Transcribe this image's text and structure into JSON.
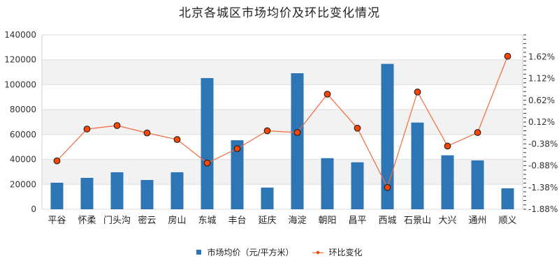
{
  "chart_data": {
    "type": "bar",
    "title": "北京各城区市场均价及环比变化情况",
    "categories": [
      "平谷",
      "怀柔",
      "门头沟",
      "密云",
      "房山",
      "东城",
      "丰台",
      "延庆",
      "海淀",
      "朝阳",
      "昌平",
      "西城",
      "石景山",
      "大兴",
      "通州",
      "顺义"
    ],
    "series": [
      {
        "name": "市场均价（元/平方米）",
        "type": "bar",
        "axis": "left",
        "color": "#2e75b6",
        "values": [
          21300,
          25200,
          29700,
          23500,
          29700,
          105300,
          55400,
          17400,
          109200,
          41000,
          37700,
          116700,
          69600,
          43300,
          39200,
          16800
        ]
      },
      {
        "name": "环比变化",
        "type": "line",
        "axis": "right",
        "color": "#f26a3a",
        "marker_color": "#ff4500",
        "unit": "%",
        "values": [
          -0.77,
          -0.04,
          0.04,
          -0.13,
          -0.28,
          -0.82,
          -0.49,
          -0.08,
          -0.12,
          0.76,
          -0.02,
          -1.38,
          0.81,
          -0.43,
          -0.12,
          1.63
        ]
      }
    ],
    "left_axis": {
      "ylim": [
        0,
        140000
      ],
      "ticks": [
        "0",
        "20000",
        "40000",
        "60000",
        "80000",
        "100000",
        "120000",
        "140000"
      ]
    },
    "right_axis": {
      "ylim": [
        -1.88,
        2.12
      ],
      "ticks": [
        "-1.88%",
        "-1.38%",
        "-0.88%",
        "-0.38%",
        "0.12%",
        "0.62%",
        "1.12%",
        "1.62%"
      ]
    },
    "xlabel": "",
    "ylabel": "",
    "grid": true,
    "legend_position": "bottom"
  },
  "legend": {
    "bar_label": "市场均价（元/平方米）",
    "line_label": "环比变化"
  }
}
